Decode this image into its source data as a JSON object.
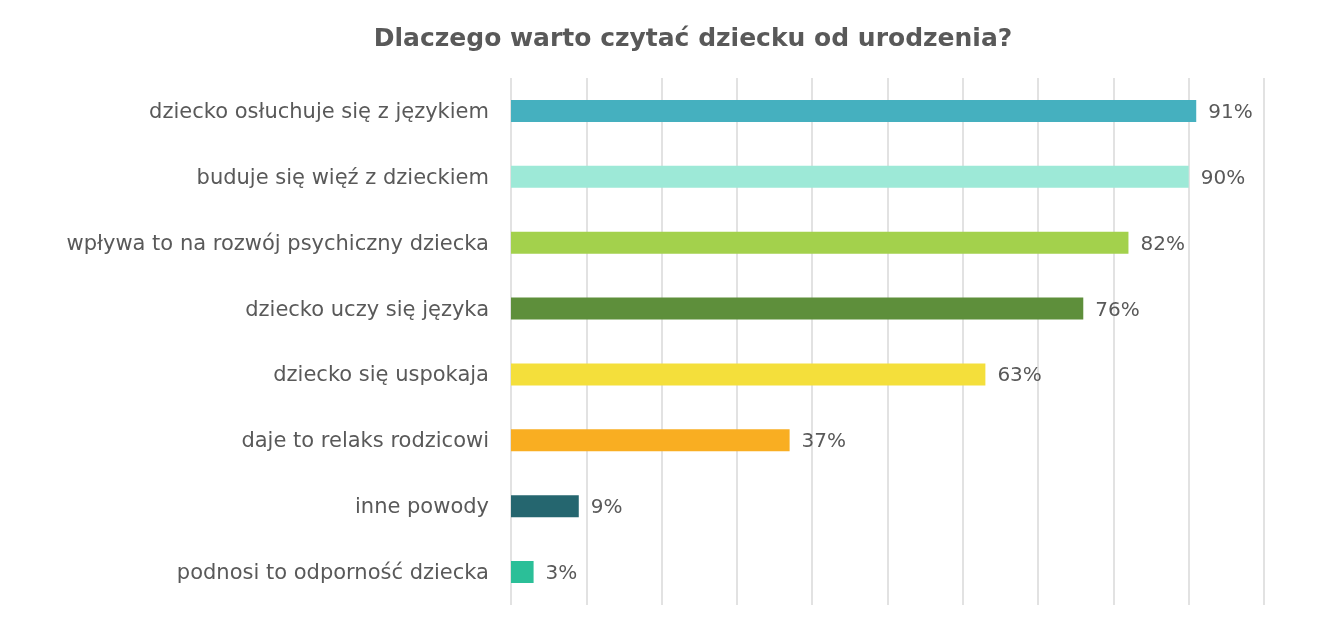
{
  "chart_data": {
    "type": "bar",
    "orientation": "horizontal",
    "title": "Dlaczego warto czytać dziecku od urodzenia?",
    "categories": [
      "dziecko osłuchuje się z językiem",
      "buduje się więź z dzieckiem",
      "wpływa to na rozwój psychiczny dziecka",
      "dziecko uczy się języka",
      "dziecko się uspokaja",
      "daje to relaks rodzicowi",
      "inne powody",
      "podnosi to odporność dziecka"
    ],
    "values": [
      91,
      90,
      82,
      76,
      63,
      37,
      9,
      3
    ],
    "value_labels": [
      "91%",
      "90%",
      "82%",
      "76%",
      "63%",
      "37%",
      "9%",
      "3%"
    ],
    "colors": [
      "#45b0bf",
      "#9de9d7",
      "#a3d14c",
      "#5e8f3b",
      "#f4df3b",
      "#f9ae22",
      "#25666f",
      "#2bbf98"
    ],
    "xlim": [
      0,
      100
    ],
    "xticks": [
      {
        "value": 0,
        "label": null
      },
      {
        "value": 10,
        "label": null
      },
      {
        "value": 20,
        "label": null
      },
      {
        "value": 30,
        "label": null
      },
      {
        "value": 40,
        "label": null
      },
      {
        "value": 50,
        "label": null
      },
      {
        "value": 60,
        "label": null
      },
      {
        "value": 70,
        "label": null
      },
      {
        "value": 80,
        "label": null
      },
      {
        "value": 90,
        "label": null
      },
      {
        "value": 100,
        "label": null
      }
    ],
    "tick_labels": "y",
    "grid": "x"
  }
}
